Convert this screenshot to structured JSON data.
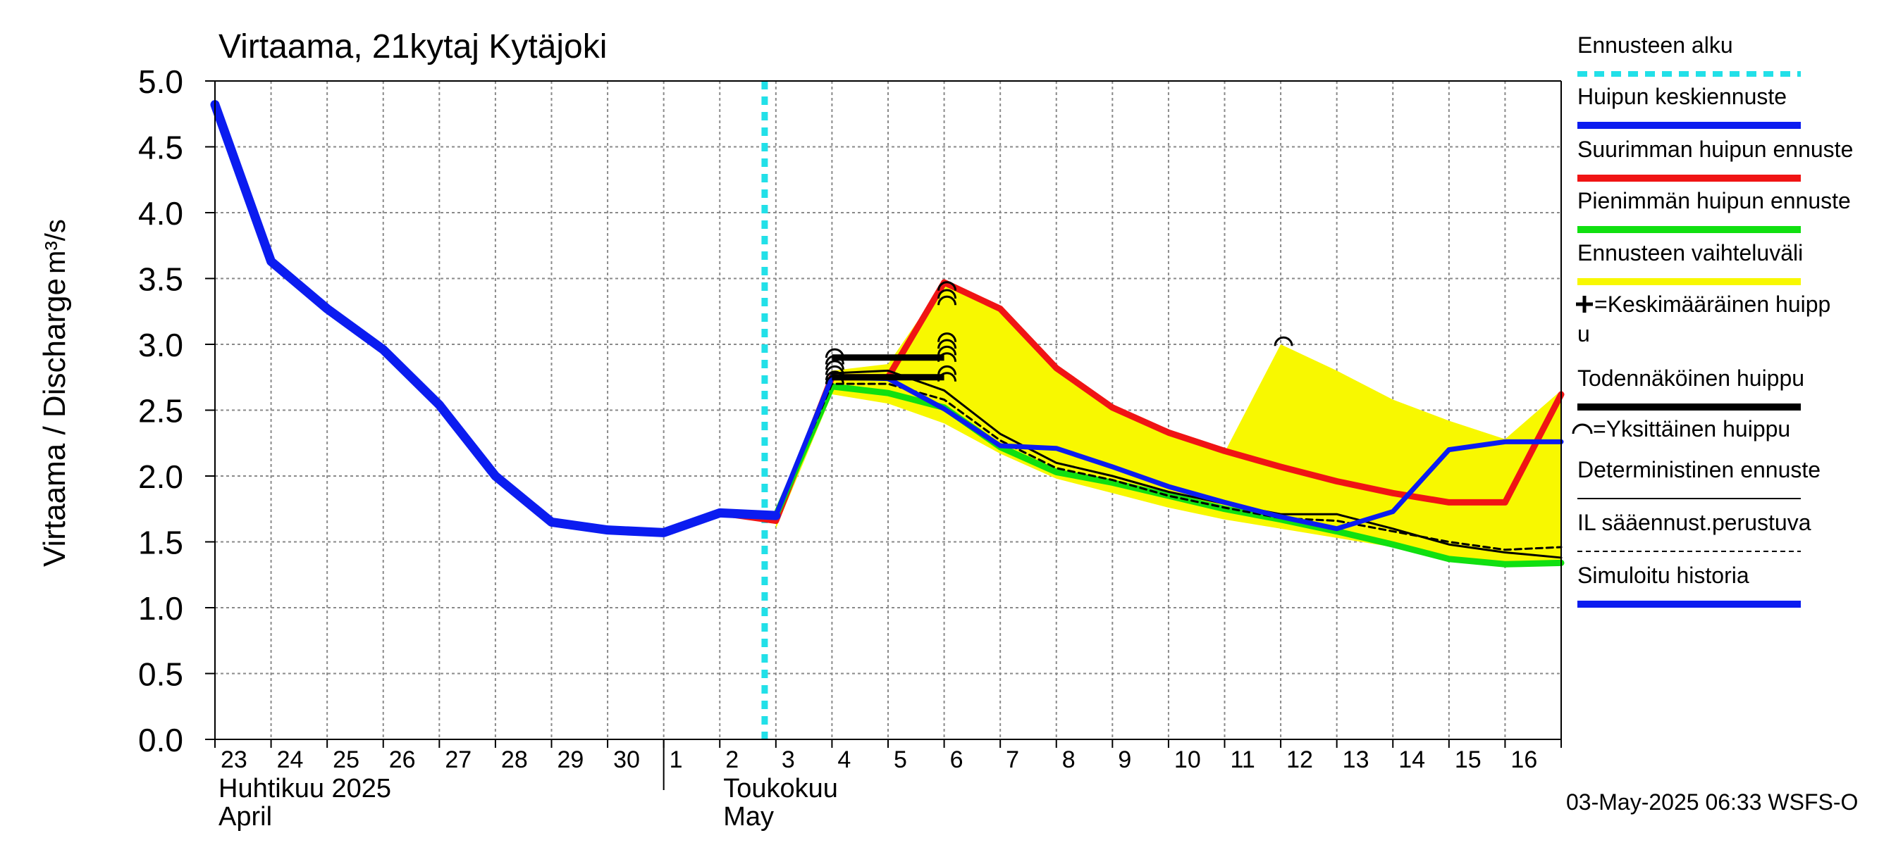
{
  "chart_data": {
    "type": "line",
    "title": "Virtaama, 21kytaj Kytäjoki",
    "ylabel_fi": "Virtaama / Discharge",
    "ylabel_unit": "m³/s",
    "ylim": [
      0,
      5
    ],
    "yticks": [
      "0.0",
      "0.5",
      "1.0",
      "1.5",
      "2.0",
      "2.5",
      "3.0",
      "3.5",
      "4.0",
      "4.5",
      "5.0"
    ],
    "x_start_day": 23,
    "x_days": 24,
    "xtick_labels": [
      "23",
      "24",
      "25",
      "26",
      "27",
      "28",
      "29",
      "30",
      "1",
      "2",
      "3",
      "4",
      "5",
      "6",
      "7",
      "8",
      "9",
      "10",
      "11",
      "12",
      "13",
      "14",
      "15",
      "16"
    ],
    "month1": "Huhtikuu  2025",
    "month1_en": "April",
    "month2": "Toukokuu",
    "month2_en": "May",
    "forecast_start_day": 9.8,
    "grid": true,
    "footer": "03-May-2025 06:33 WSFS-O",
    "legend": [
      {
        "label": "Ennusteen alku",
        "color": "#22e0e8",
        "style": "dashed"
      },
      {
        "label": "Huipun keskiennuste",
        "color": "#0b1cf0",
        "style": "thick"
      },
      {
        "label": "Suurimman huipun ennuste",
        "color": "#f01414",
        "style": "thick"
      },
      {
        "label": "Pienimmän huipun ennuste",
        "color": "#10e010",
        "style": "thick"
      },
      {
        "label": "Ennusteen vaihteluväli",
        "color": "#f8f800",
        "style": "thick"
      },
      {
        "label": "=Keskimääräinen huipp\nu",
        "color": "#000000",
        "style": "plus"
      },
      {
        "label": "Todennäköinen huippu",
        "color": "#000000",
        "style": "thick"
      },
      {
        "label": "=Yksittäinen huippu",
        "color": "#000000",
        "style": "arc"
      },
      {
        "label": "Deterministinen ennuste",
        "color": "#000000",
        "style": "thin"
      },
      {
        "label": "IL sääennust.perustuva",
        "color": "#000000",
        "style": "dotted"
      },
      {
        "label": "Simuloitu historia",
        "color": "#0b1cf0",
        "style": "thick"
      }
    ],
    "series": [
      {
        "name": "Simuloitu historia",
        "color": "#0b1cf0",
        "x": [
          0,
          1,
          2,
          3,
          4,
          5,
          6,
          7,
          8,
          9,
          10
        ],
        "y": [
          4.82,
          3.63,
          3.27,
          2.96,
          2.54,
          2.0,
          1.65,
          1.59,
          1.57,
          1.72,
          1.7
        ]
      },
      {
        "name": "Ennusteen vaihteluväli upper",
        "color": "#f8f800",
        "x": [
          10,
          11,
          12,
          13,
          14,
          15,
          16,
          17,
          18,
          19,
          20,
          21,
          22,
          23,
          24
        ],
        "y": [
          1.72,
          2.8,
          2.85,
          3.47,
          3.25,
          2.82,
          2.5,
          2.33,
          2.18,
          3.0,
          2.8,
          2.58,
          2.42,
          2.28,
          2.65
        ]
      },
      {
        "name": "Ennusteen vaihteluväli lower",
        "color": "#f8f800",
        "x": [
          10,
          11,
          12,
          13,
          14,
          15,
          16,
          17,
          18,
          19,
          20,
          21,
          22,
          23,
          24
        ],
        "y": [
          1.6,
          2.62,
          2.55,
          2.4,
          2.17,
          1.98,
          1.87,
          1.76,
          1.67,
          1.6,
          1.53,
          1.46,
          1.38,
          1.33,
          1.32
        ]
      },
      {
        "name": "Suurimman huipun ennuste",
        "color": "#f01414",
        "x": [
          8,
          9,
          10,
          11,
          12,
          13,
          14,
          15,
          16,
          17,
          18,
          19,
          20,
          21,
          22,
          23,
          24
        ],
        "y": [
          1.57,
          1.72,
          1.66,
          2.75,
          2.75,
          3.47,
          3.27,
          2.82,
          2.52,
          2.33,
          2.19,
          2.07,
          1.96,
          1.87,
          1.8,
          1.8,
          2.62
        ]
      },
      {
        "name": "Pienimmän huipun ennuste",
        "color": "#10e010",
        "x": [
          10,
          11,
          12,
          13,
          14,
          15,
          16,
          17,
          18,
          19,
          20,
          21,
          22,
          23,
          24
        ],
        "y": [
          1.7,
          2.68,
          2.63,
          2.52,
          2.22,
          2.03,
          1.95,
          1.85,
          1.75,
          1.67,
          1.58,
          1.48,
          1.37,
          1.33,
          1.34
        ]
      },
      {
        "name": "Huipun keskiennuste",
        "color": "#0b1cf0",
        "x": [
          10,
          11,
          12,
          13,
          14,
          15,
          16,
          17,
          18,
          19,
          20,
          21,
          22,
          23,
          24
        ],
        "y": [
          1.7,
          2.75,
          2.74,
          2.51,
          2.23,
          2.21,
          2.07,
          1.92,
          1.8,
          1.69,
          1.6,
          1.73,
          2.2,
          2.26,
          2.26
        ]
      },
      {
        "name": "Deterministinen ennuste",
        "color": "#000000",
        "x": [
          10,
          11,
          12,
          13,
          14,
          15,
          16,
          17,
          18,
          19,
          20,
          21,
          22,
          23,
          24
        ],
        "y": [
          1.7,
          2.78,
          2.8,
          2.65,
          2.32,
          2.1,
          2.0,
          1.88,
          1.79,
          1.71,
          1.71,
          1.6,
          1.48,
          1.42,
          1.38
        ]
      },
      {
        "name": "IL sääennust.perustuva",
        "color": "#000000",
        "x": [
          10,
          11,
          12,
          13,
          14,
          15,
          16,
          17,
          18,
          19,
          20,
          21,
          22,
          23,
          24
        ],
        "y": [
          1.7,
          2.7,
          2.7,
          2.58,
          2.27,
          2.06,
          1.97,
          1.85,
          1.76,
          1.68,
          1.66,
          1.58,
          1.5,
          1.44,
          1.46
        ]
      }
    ],
    "peak_lines": [
      {
        "x0": 11.0,
        "x1": 13.0,
        "y": 2.9
      },
      {
        "x0": 11.0,
        "x1": 13.0,
        "y": 2.75
      }
    ],
    "peak_markers": [
      {
        "x": 11.05,
        "y": 2.93
      },
      {
        "x": 11.05,
        "y": 2.88
      },
      {
        "x": 11.05,
        "y": 2.84
      },
      {
        "x": 11.05,
        "y": 2.8
      },
      {
        "x": 11.05,
        "y": 2.76
      },
      {
        "x": 11.05,
        "y": 2.73
      },
      {
        "x": 13.05,
        "y": 3.44
      },
      {
        "x": 13.05,
        "y": 3.38
      },
      {
        "x": 13.05,
        "y": 3.33
      },
      {
        "x": 13.05,
        "y": 3.05
      },
      {
        "x": 13.05,
        "y": 3.0
      },
      {
        "x": 13.05,
        "y": 2.95
      },
      {
        "x": 13.05,
        "y": 2.9
      },
      {
        "x": 13.05,
        "y": 2.8
      },
      {
        "x": 13.05,
        "y": 2.75
      },
      {
        "x": 19.05,
        "y": 3.02
      }
    ]
  }
}
